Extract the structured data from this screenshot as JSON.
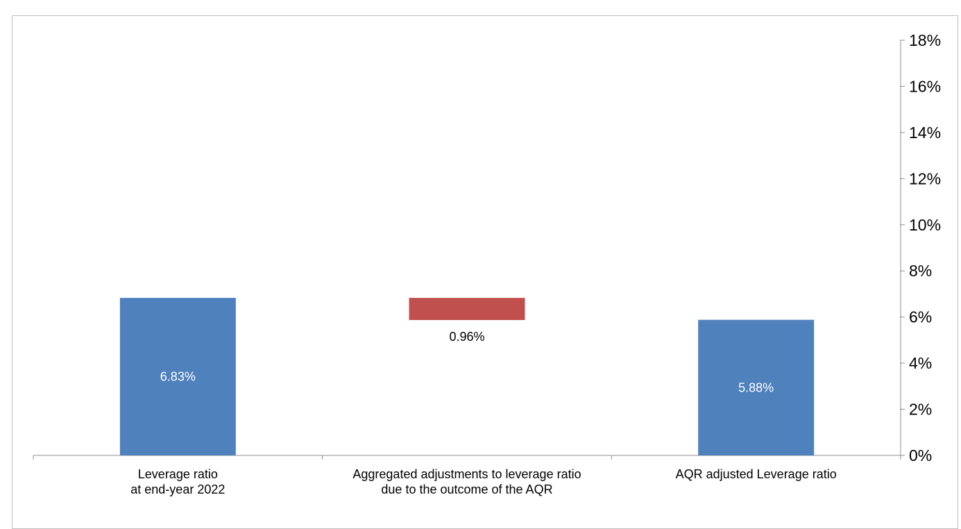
{
  "chart_data": {
    "type": "bar",
    "subtype": "waterfall",
    "categories": [
      [
        "Leverage ratio",
        "at end-year 2022"
      ],
      [
        "Aggregated adjustments to leverage ratio",
        "due to the outcome of the AQR"
      ],
      [
        "AQR adjusted Leverage ratio"
      ]
    ],
    "bars": [
      {
        "kind": "total",
        "start": 0,
        "end": 6.83,
        "label": "6.83%",
        "color": "#4f81bd",
        "label_color": "#ffffff",
        "label_position": "inside"
      },
      {
        "kind": "decrease",
        "start": 6.83,
        "end": 5.87,
        "label": "0.96%",
        "color": "#c0504d",
        "label_color": "#000000",
        "label_position": "below"
      },
      {
        "kind": "total",
        "start": 0,
        "end": 5.88,
        "label": "5.88%",
        "color": "#4f81bd",
        "label_color": "#ffffff",
        "label_position": "inside"
      }
    ],
    "yaxis": {
      "position": "right",
      "min": 0,
      "max": 18,
      "step": 2,
      "tick_labels": [
        "0%",
        "2%",
        "4%",
        "6%",
        "8%",
        "10%",
        "12%",
        "14%",
        "16%",
        "18%"
      ]
    },
    "grid": false,
    "legend": "none",
    "title": "",
    "xlabel": "",
    "ylabel": ""
  }
}
